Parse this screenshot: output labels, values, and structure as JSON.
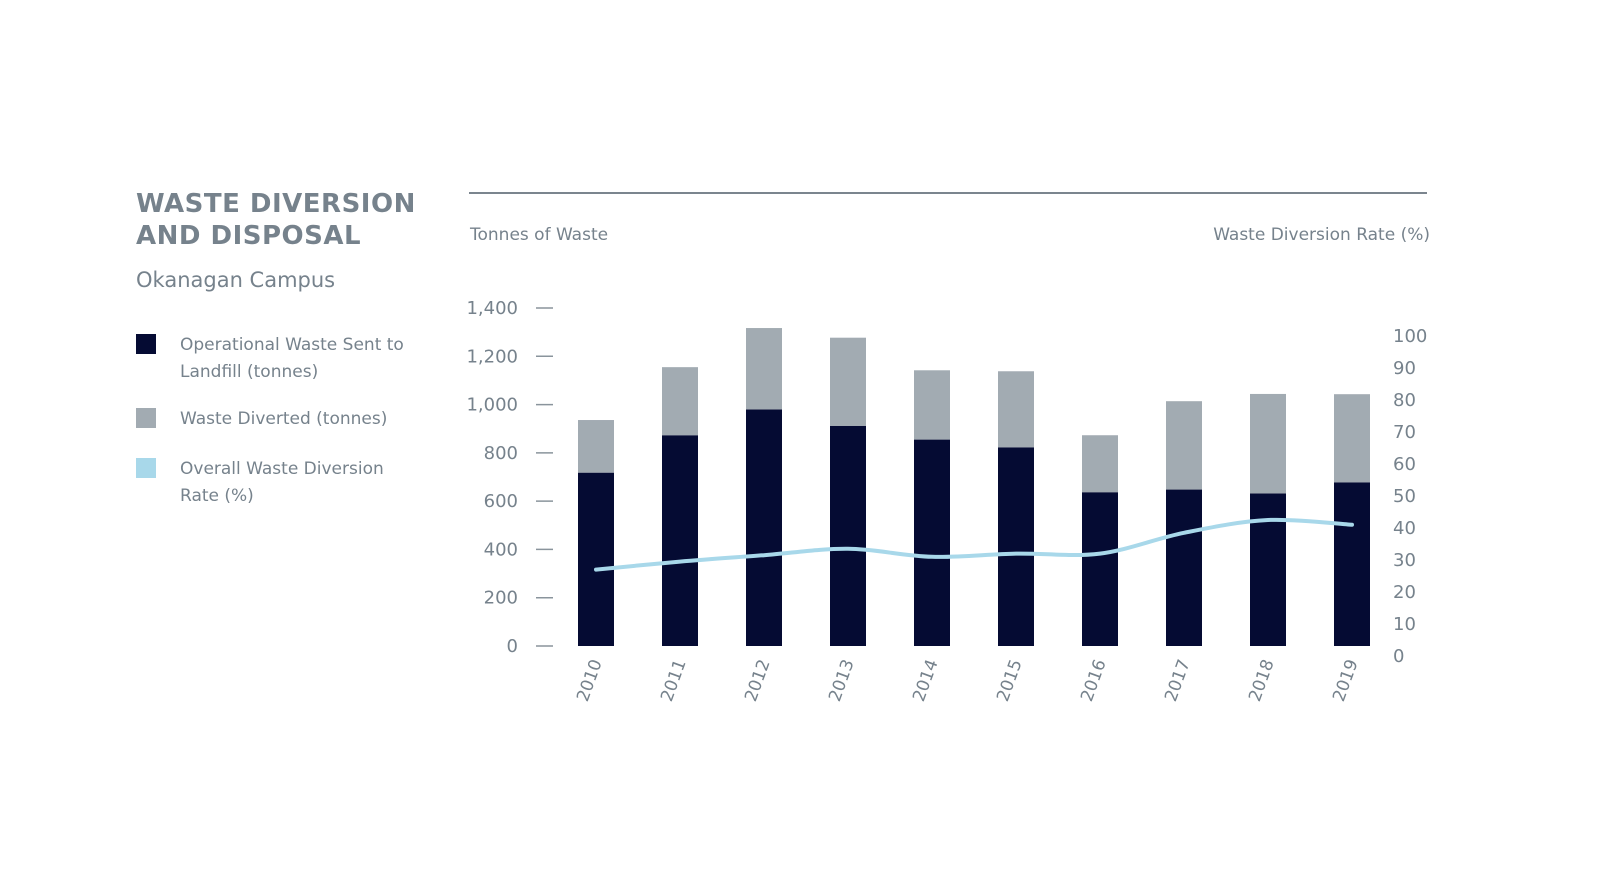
{
  "header": {
    "title_line1": "WASTE DIVERSION",
    "title_line2": "AND DISPOSAL",
    "subtitle": "Okanagan Campus"
  },
  "legend": {
    "items": [
      {
        "label": "Operational Waste Sent to Landfill (tonnes)",
        "color": "#050b33"
      },
      {
        "label": "Waste Diverted (tonnes)",
        "color": "#a2abb2"
      },
      {
        "label": "Overall Waste Diversion Rate (%)",
        "color": "#a8d8ea"
      }
    ]
  },
  "chart_data": {
    "type": "bar",
    "stacked": true,
    "categories": [
      "2010",
      "2011",
      "2012",
      "2013",
      "2014",
      "2015",
      "2016",
      "2017",
      "2018",
      "2019"
    ],
    "series": [
      {
        "name": "Operational Waste Sent to Landfill (tonnes)",
        "axis": "left",
        "color": "#050b33",
        "values": [
          718,
          873,
          980,
          912,
          855,
          823,
          637,
          648,
          632,
          678
        ]
      },
      {
        "name": "Waste Diverted (tonnes)",
        "axis": "left",
        "color": "#a2abb2",
        "values": [
          218,
          282,
          337,
          365,
          287,
          315,
          236,
          366,
          412,
          365
        ]
      },
      {
        "name": "Overall Waste Diversion Rate (%)",
        "axis": "right",
        "type": "line",
        "color": "#a8d8ea",
        "values": [
          27,
          29.5,
          31.5,
          33.5,
          31,
          32,
          32,
          38.5,
          42.5,
          41
        ]
      }
    ],
    "ylabel": "Tonnes of Waste",
    "y2label": "Waste Diversion Rate (%)",
    "ylim": [
      0,
      1400
    ],
    "y2lim": [
      0,
      100
    ],
    "yticks": [
      0,
      200,
      400,
      600,
      800,
      1000,
      1200,
      1400
    ],
    "yticklabels": [
      "0",
      "200",
      "400",
      "600",
      "800",
      "1,000",
      "1,200",
      "1,400"
    ],
    "y2ticks": [
      0,
      10,
      20,
      30,
      40,
      50,
      60,
      70,
      80,
      90,
      100
    ],
    "y2ticklabels": [
      "0",
      "10",
      "20",
      "30",
      "40",
      "50",
      "60",
      "70",
      "80",
      "90",
      "100"
    ],
    "grid": false
  }
}
